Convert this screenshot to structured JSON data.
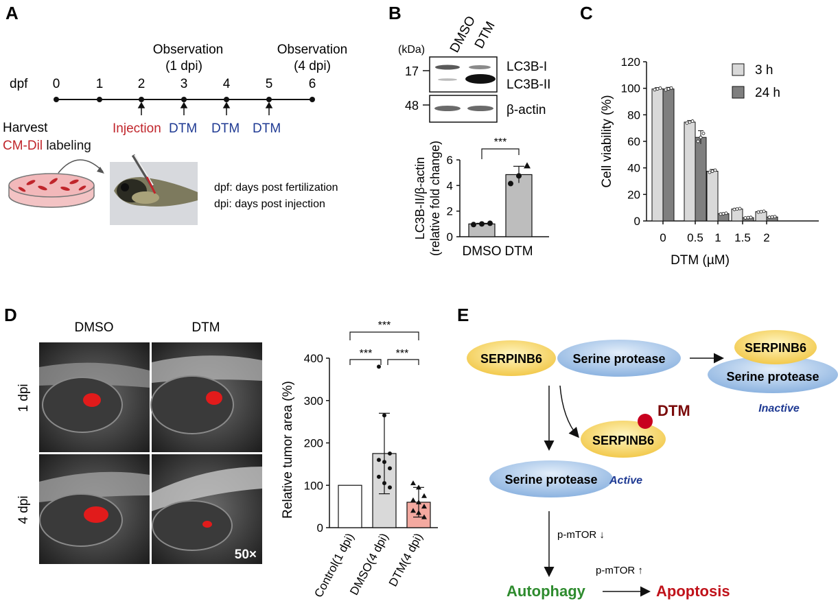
{
  "panels": {
    "A": {
      "letter": "A",
      "axis_label": "dpf",
      "days": [
        "0",
        "1",
        "2",
        "3",
        "4",
        "5",
        "6"
      ],
      "observation_1": "Observation",
      "observation_1_sub": "(1 dpi)",
      "observation_4": "Observation",
      "observation_4_sub": "(4 dpi)",
      "injection": "Injection",
      "dtm_markers": [
        "DTM",
        "DTM",
        "DTM"
      ],
      "harvest": "Harvest",
      "cm_dil": "CM-Dil",
      "labeling": " labeling",
      "legend_dpf": "dpf: days post fertilization",
      "legend_dpi": "dpi: days post injection"
    },
    "B": {
      "letter": "B",
      "kda": "(kDa)",
      "lane_labels": [
        "DMSO",
        "DTM"
      ],
      "marker_17": "17",
      "marker_48": "48",
      "band_lc3b_i": "LC3B-I",
      "band_lc3b_ii": "LC3B-II",
      "band_actin": "β-actin",
      "significance": "***"
    },
    "C": {
      "letter": "C"
    },
    "D": {
      "letter": "D",
      "col_labels": [
        "DMSO",
        "DTM"
      ],
      "row_labels": [
        "1 dpi",
        "4 dpi"
      ],
      "magnification": "50×",
      "significance": [
        "***",
        "***",
        "***"
      ]
    },
    "E": {
      "letter": "E",
      "serpinb6": "SERPINB6",
      "serine_protease": "Serine protease",
      "inactive": "Inactive",
      "active": "Active",
      "dtm": "DTM",
      "p_mtor_down": "p-mTOR ↓",
      "p_mtor_up": "p-mTOR ↑",
      "autophagy": "Autophagy",
      "apoptosis": "Apoptosis"
    }
  },
  "chart_data": [
    {
      "id": "B-quant",
      "type": "bar",
      "categories": [
        "DMSO",
        "DTM"
      ],
      "values": [
        1.0,
        4.85
      ],
      "errors": [
        0.05,
        0.65
      ],
      "points": [
        [
          0.95,
          1.0,
          1.05
        ],
        [
          4.15,
          4.75,
          5.55
        ]
      ],
      "ylabel": "LC3B-II/β-actin\n(relative fold change)",
      "ylim": [
        0,
        6
      ],
      "yticks": [
        "0",
        "2",
        "4",
        "6"
      ],
      "grid": false
    },
    {
      "id": "C-viability",
      "type": "bar",
      "categories": [
        "0",
        "0.5",
        "1",
        "1.5",
        "2"
      ],
      "series": [
        {
          "name": "3 h",
          "values": [
            99.5,
            74.5,
            37.5,
            9.0,
            7.0
          ],
          "errors": [
            1.0,
            1.2,
            1.3,
            0.5,
            0.5
          ]
        },
        {
          "name": "24 h",
          "values": [
            99.5,
            63.0,
            5.5,
            2.5,
            3.0
          ],
          "errors": [
            1.2,
            5.0,
            0.5,
            0.3,
            0.4
          ]
        }
      ],
      "xlabel": "DTM (µM)",
      "ylabel": "Cell viability (%)",
      "ylim": [
        0,
        120
      ],
      "yticks": [
        "0",
        "20",
        "40",
        "60",
        "80",
        "100",
        "120"
      ],
      "legend": "top-right",
      "colors": [
        "#d9d9d9",
        "#7f7f7f"
      ]
    },
    {
      "id": "D-tumor",
      "type": "bar",
      "categories": [
        "Control(1 dpi)",
        "DMSO(4 dpi)",
        "DTM(4 dpi)"
      ],
      "values": [
        100,
        175,
        60
      ],
      "errors": [
        0,
        95,
        35
      ],
      "points": [
        [],
        [
          380,
          265,
          175,
          160,
          155,
          140,
          120,
          105,
          95
        ],
        [
          105,
          95,
          75,
          65,
          60,
          50,
          40,
          35,
          25
        ]
      ],
      "ylabel": "Relative tumor area (%)",
      "ylim": [
        0,
        400
      ],
      "yticks": [
        "0",
        "100",
        "200",
        "300",
        "400"
      ],
      "colors": [
        "#ffffff",
        "#d9d9d9",
        "#f4a9a0"
      ]
    }
  ]
}
